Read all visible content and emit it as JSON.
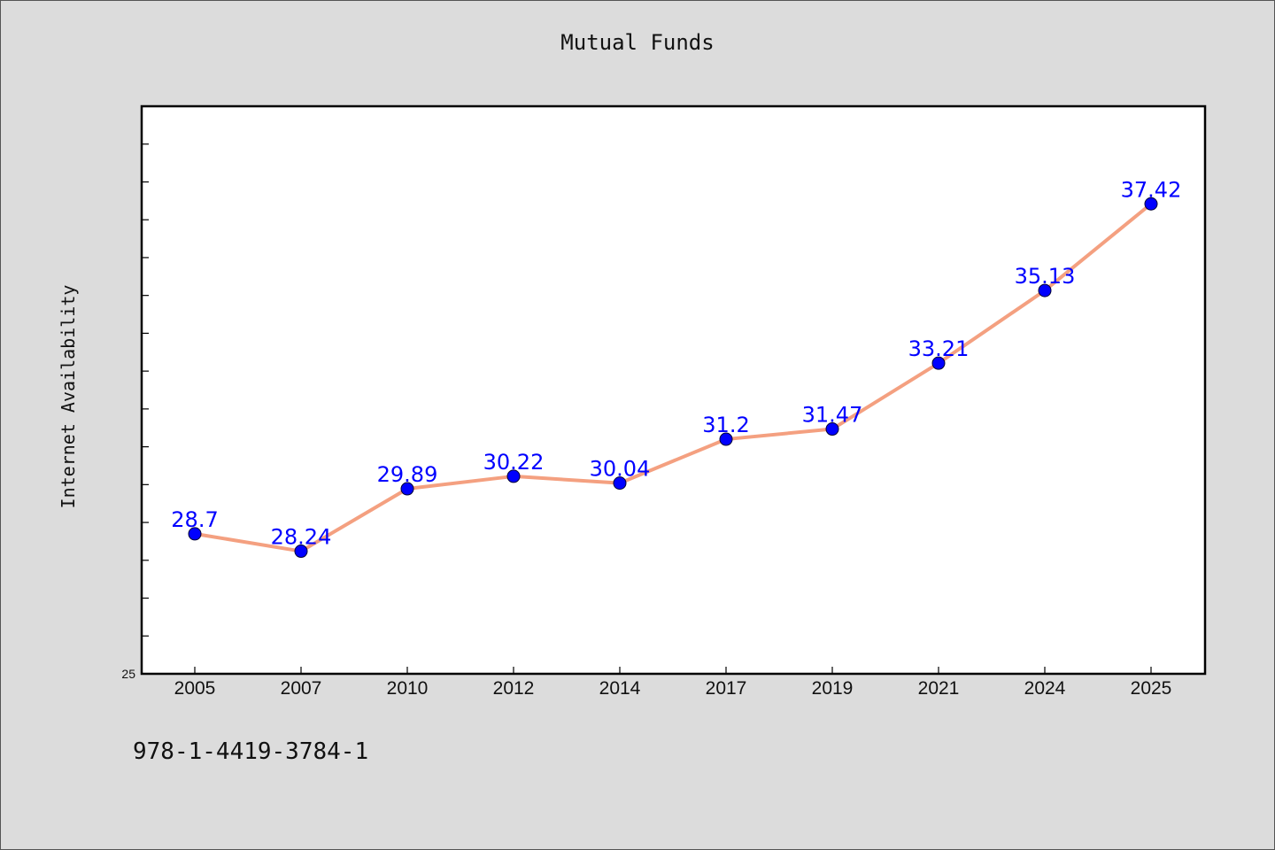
{
  "chart_data": {
    "type": "line",
    "title": "Mutual Funds",
    "xlabel": "",
    "ylabel": "Internet Availability",
    "categories": [
      "2005",
      "2007",
      "2010",
      "2012",
      "2014",
      "2017",
      "2019",
      "2021",
      "2024",
      "2025"
    ],
    "values": [
      28.7,
      28.24,
      29.89,
      30.22,
      30.04,
      31.2,
      31.47,
      33.21,
      35.13,
      37.42
    ],
    "data_labels": [
      "28.7",
      "28.24",
      "29.89",
      "30.22",
      "30.04",
      "31.2",
      "31.47",
      "33.21",
      "35.13",
      "37.42"
    ],
    "ylim": [
      25,
      40
    ],
    "y_tick_label": "25",
    "line_color": "#f4a080",
    "marker_color": "#0000ff",
    "label_color": "#0000ff",
    "grid": false,
    "legend": "none"
  },
  "footer": {
    "isbn": "978-1-4419-3784-1"
  }
}
